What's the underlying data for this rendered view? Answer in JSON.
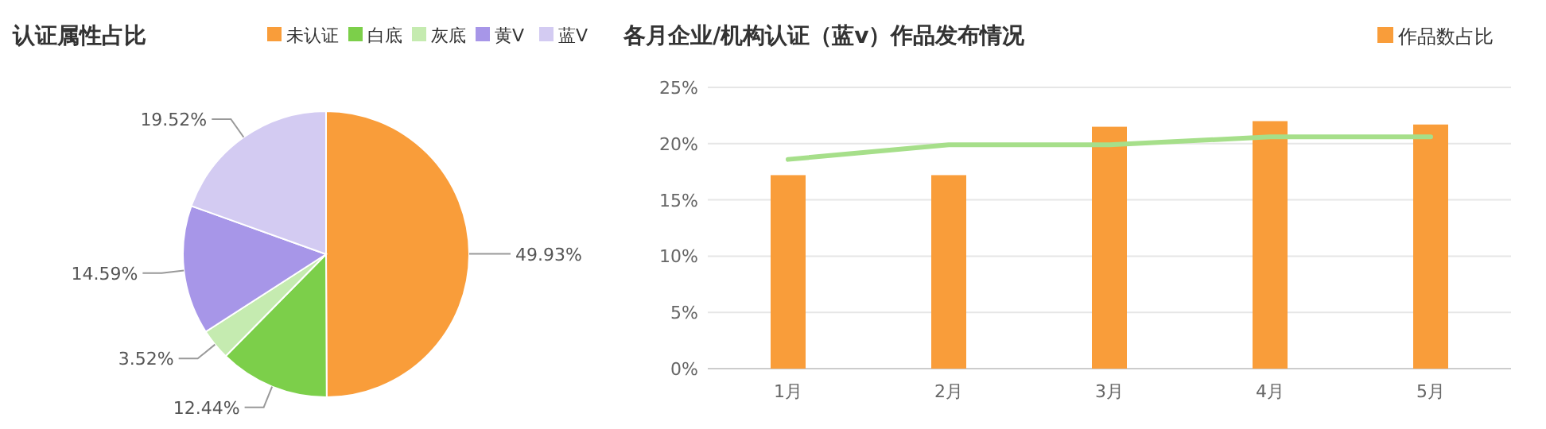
{
  "chart_data": [
    {
      "type": "pie",
      "title": "认证属性占比",
      "categories": [
        "未认证",
        "白底",
        "灰底",
        "黄V",
        "蓝V"
      ],
      "values": [
        49.93,
        12.44,
        3.52,
        14.59,
        19.52
      ],
      "colors": [
        "#f99d3a",
        "#7ccf4a",
        "#c5ebb0",
        "#a796e8",
        "#d3cbf2"
      ],
      "value_labels": [
        "49.93%",
        "12.44%",
        "3.52%",
        "14.59%",
        "19.52%"
      ],
      "legend": "top right"
    },
    {
      "type": "bar",
      "title": "各月企业/机构认证（蓝v）作品发布情况",
      "categories": [
        "1月",
        "2月",
        "3月",
        "4月",
        "5月"
      ],
      "series": [
        {
          "name": "作品数占比",
          "color": "#f99d3a",
          "values": [
            17.2,
            17.2,
            21.5,
            22.0,
            21.7
          ]
        },
        {
          "type": "line",
          "color": "#a6df8a",
          "values": [
            18.6,
            19.9,
            19.9,
            20.6,
            20.6
          ]
        }
      ],
      "ylim": [
        0,
        25
      ],
      "yticks": [
        {
          "value": 0,
          "label": "0%"
        },
        {
          "value": 5,
          "label": "5%"
        },
        {
          "value": 10,
          "label": "10%"
        },
        {
          "value": 15,
          "label": "15%"
        },
        {
          "value": 20,
          "label": "20%"
        },
        {
          "value": 25,
          "label": "25%"
        }
      ],
      "grid": "y",
      "legend": "top right"
    }
  ]
}
